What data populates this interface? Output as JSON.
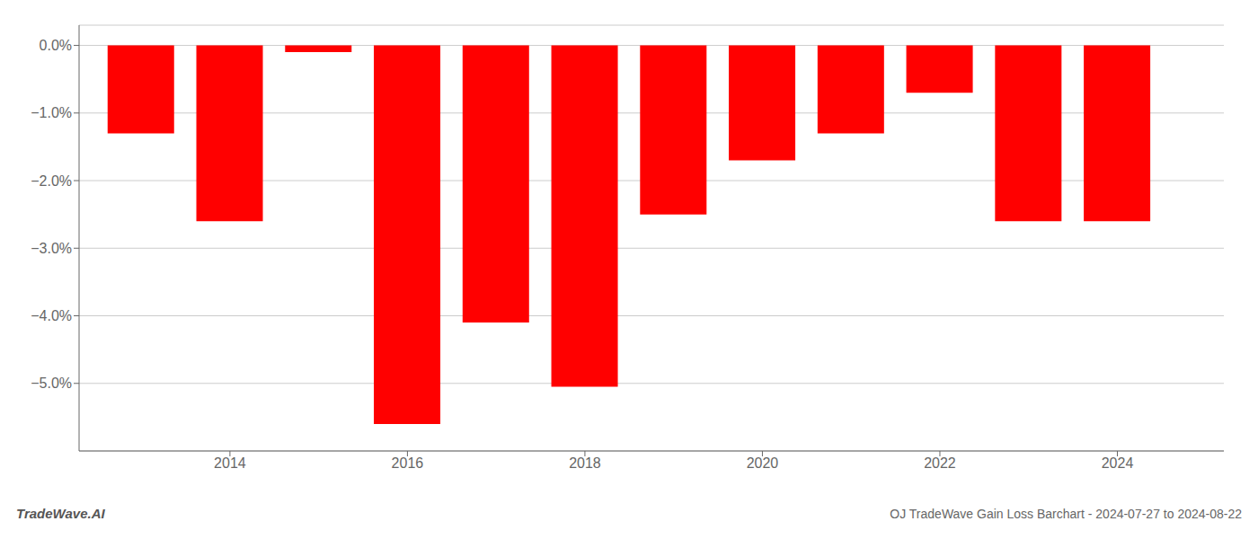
{
  "chart_data": {
    "type": "bar",
    "x": [
      2013,
      2014,
      2015,
      2016,
      2017,
      2018,
      2019,
      2020,
      2021,
      2022,
      2023,
      2024
    ],
    "values": [
      -1.3,
      -2.6,
      -0.1,
      -5.6,
      -4.1,
      -5.05,
      -2.5,
      -1.7,
      -1.3,
      -0.7,
      -2.6,
      -2.6
    ],
    "color": "#ff0000",
    "xlim": [
      2012.3,
      2025.2
    ],
    "xticks": [
      2014,
      2016,
      2018,
      2020,
      2022,
      2024
    ],
    "ylim": [
      -6.0,
      0.3
    ],
    "yticks": [
      {
        "value": 0.0,
        "label": "0.0%"
      },
      {
        "value": -1.0,
        "label": "−1.0%"
      },
      {
        "value": -2.0,
        "label": "−2.0%"
      },
      {
        "value": -3.0,
        "label": "−3.0%"
      },
      {
        "value": -4.0,
        "label": "−4.0%"
      },
      {
        "value": -5.0,
        "label": "−5.0%"
      }
    ],
    "grid": true,
    "annotations": [
      "TradeWave.AI",
      "OJ TradeWave Gain Loss Barchart - 2024-07-27 to 2024-08-22"
    ]
  }
}
